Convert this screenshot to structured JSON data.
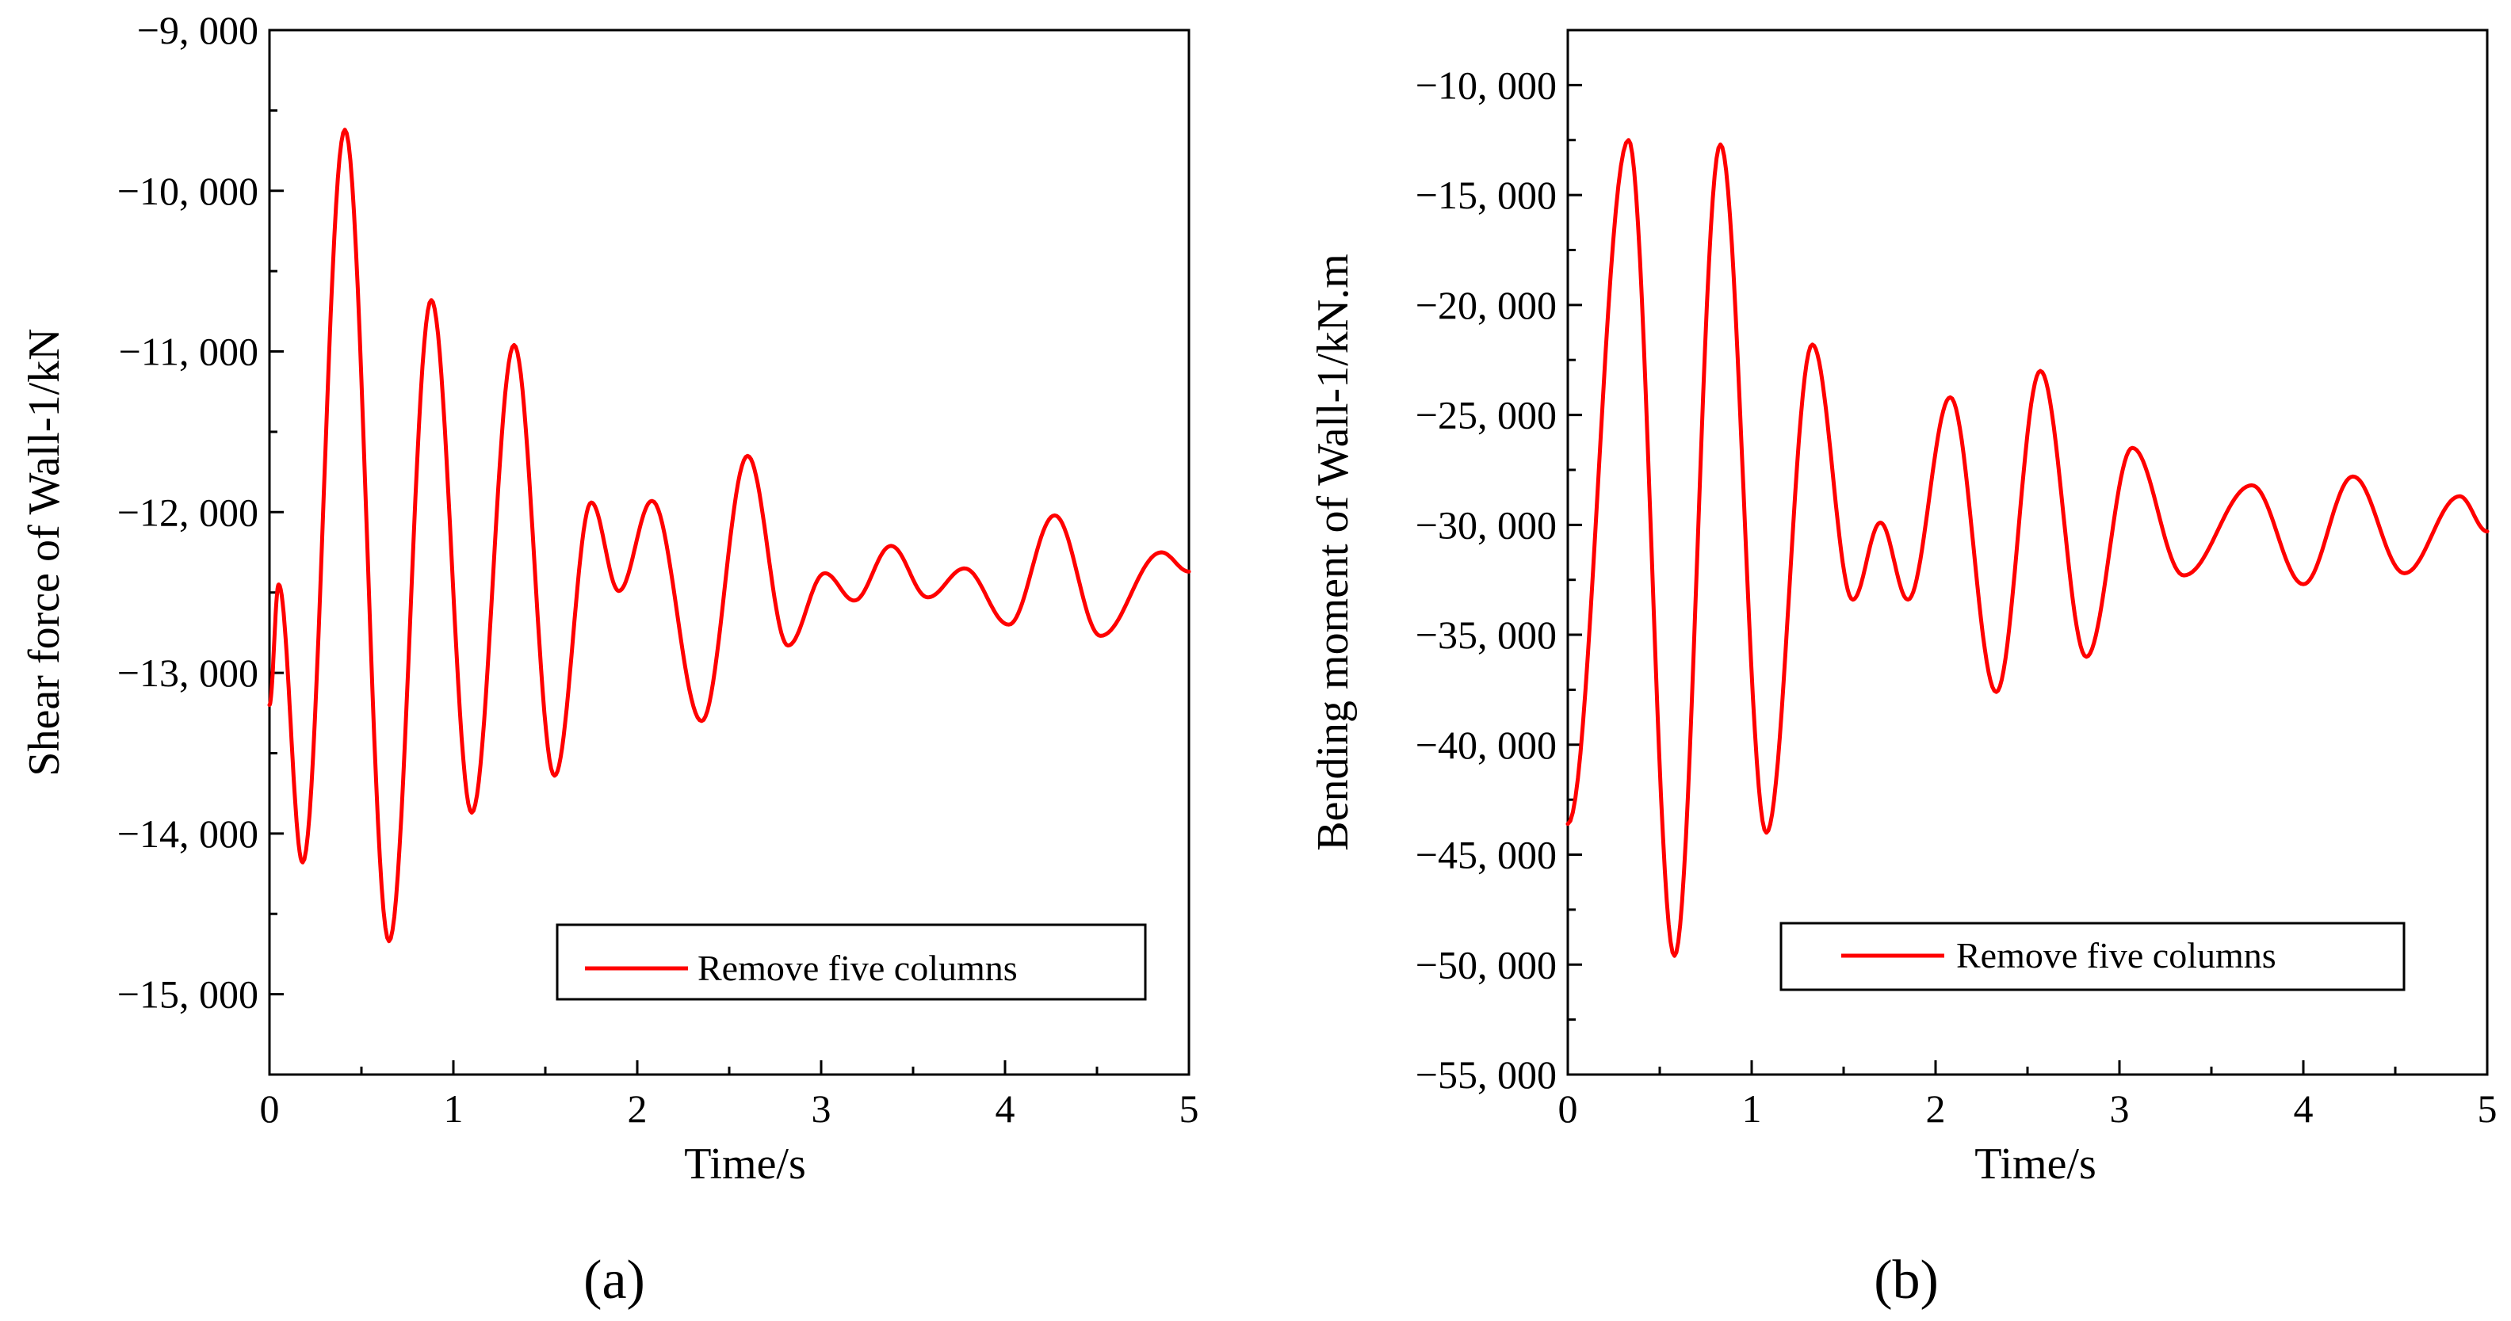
{
  "chart_data": [
    {
      "type": "line",
      "panel_label": "(a)",
      "xlabel": "Time/s",
      "ylabel": "Shear force of Wall-1/kN",
      "xlim": [
        0,
        5
      ],
      "ylim": [
        -15500,
        -9000
      ],
      "x_ticks": [
        0,
        1,
        2,
        3,
        4,
        5
      ],
      "x_tick_labels": [
        "0",
        "1",
        "2",
        "3",
        "4",
        "5"
      ],
      "y_ticks": [
        -15000,
        -14000,
        -13000,
        -12000,
        -11000,
        -10000,
        -9000
      ],
      "y_tick_labels": [
        "−15, 000",
        "−14, 000",
        "−13, 000",
        "−12, 000",
        "−11, 000",
        "−10, 000",
        "−9, 000"
      ],
      "grid": false,
      "legend_position": "bottom-right",
      "series": [
        {
          "name": "Remove five columns",
          "color": "#ff0000",
          "style": "smooth",
          "points": [
            [
              0.0,
              -13200
            ],
            [
              0.05,
              -12450
            ],
            [
              0.18,
              -14180
            ],
            [
              0.41,
              -9620
            ],
            [
              0.65,
              -14670
            ],
            [
              0.88,
              -10680
            ],
            [
              1.1,
              -13870
            ],
            [
              1.33,
              -10960
            ],
            [
              1.55,
              -13640
            ],
            [
              1.75,
              -11940
            ],
            [
              1.9,
              -12490
            ],
            [
              2.08,
              -11930
            ],
            [
              2.35,
              -13300
            ],
            [
              2.6,
              -11650
            ],
            [
              2.82,
              -12830
            ],
            [
              3.02,
              -12380
            ],
            [
              3.18,
              -12550
            ],
            [
              3.38,
              -12210
            ],
            [
              3.58,
              -12530
            ],
            [
              3.78,
              -12350
            ],
            [
              4.02,
              -12700
            ],
            [
              4.27,
              -12020
            ],
            [
              4.52,
              -12770
            ],
            [
              4.85,
              -12250
            ],
            [
              5.0,
              -12370
            ]
          ]
        }
      ]
    },
    {
      "type": "line",
      "panel_label": "(b)",
      "xlabel": "Time/s",
      "ylabel": "Bending moment of  Wall-1/kN.m",
      "xlim": [
        0,
        5
      ],
      "ylim": [
        -55000,
        -7500
      ],
      "x_ticks": [
        0,
        1,
        2,
        3,
        4,
        5
      ],
      "x_tick_labels": [
        "0",
        "1",
        "2",
        "3",
        "4",
        "5"
      ],
      "y_ticks": [
        -55000,
        -50000,
        -45000,
        -40000,
        -35000,
        -30000,
        -25000,
        -20000,
        -15000,
        -10000
      ],
      "y_tick_labels": [
        "−55, 000",
        "−50, 000",
        "−45, 000",
        "−40, 000",
        "−35, 000",
        "−30, 000",
        "−25, 000",
        "−20, 000",
        "−15, 000",
        "−10, 000"
      ],
      "grid": false,
      "legend_position": "bottom-right",
      "series": [
        {
          "name": "Remove five columns",
          "color": "#ff0000",
          "style": "smooth",
          "points": [
            [
              0.0,
              -43600
            ],
            [
              0.33,
              -12500
            ],
            [
              0.58,
              -49600
            ],
            [
              0.83,
              -12700
            ],
            [
              1.08,
              -44000
            ],
            [
              1.33,
              -21800
            ],
            [
              1.55,
              -33400
            ],
            [
              1.7,
              -29900
            ],
            [
              1.85,
              -33400
            ],
            [
              2.08,
              -24200
            ],
            [
              2.33,
              -37600
            ],
            [
              2.57,
              -23000
            ],
            [
              2.82,
              -36000
            ],
            [
              3.07,
              -26500
            ],
            [
              3.35,
              -32300
            ],
            [
              3.72,
              -28200
            ],
            [
              4.0,
              -32700
            ],
            [
              4.27,
              -27800
            ],
            [
              4.55,
              -32200
            ],
            [
              4.85,
              -28700
            ],
            [
              5.0,
              -30300
            ]
          ]
        }
      ]
    }
  ]
}
